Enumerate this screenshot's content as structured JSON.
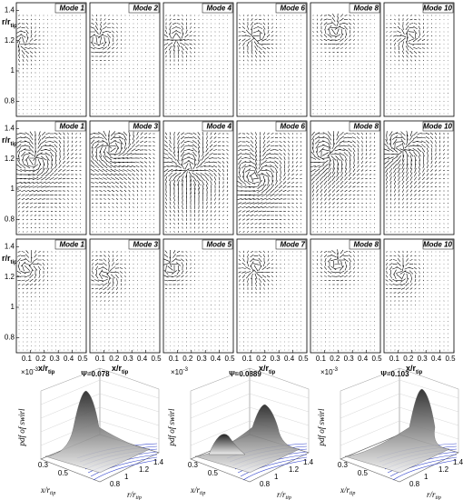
{
  "y_axis_label": {
    "main": "r/r",
    "sub": "tip"
  },
  "x_axis_label": {
    "main": "x/r",
    "sub": "tip"
  },
  "yticks": [
    "1.4",
    "1.2",
    "1",
    "0.8"
  ],
  "xticks": [
    "0.1",
    "0.2",
    "0.3",
    "0.4",
    "0.5"
  ],
  "rows": [
    [
      "Mode 1",
      "Mode 2",
      "Mode 4",
      "Mode 6",
      "Mode 8",
      "Mode 10"
    ],
    [
      "Mode 1",
      "Mode 3",
      "Mode 4",
      "Mode 6",
      "Mode 8",
      "Mode 10"
    ],
    [
      "Mode 1",
      "Mode 3",
      "Mode 5",
      "Mode 7",
      "Mode 8",
      "Mode 10"
    ]
  ],
  "surface_plots": {
    "titles": [
      "Ψ=0.078",
      "Ψ=0.0889",
      "Ψ=0.103"
    ],
    "exponent": {
      "main": "×10",
      "sup": "-3"
    },
    "z_label": "pdf of swirl",
    "x_label": {
      "main": "x/r",
      "sub": "tip"
    },
    "r_label": {
      "main": "r/r",
      "sub": "tip"
    },
    "x_ticks": [
      "0.3",
      "0.5"
    ],
    "r_ticks": [
      "0.8",
      "1",
      "1.2",
      "1.4"
    ]
  }
}
